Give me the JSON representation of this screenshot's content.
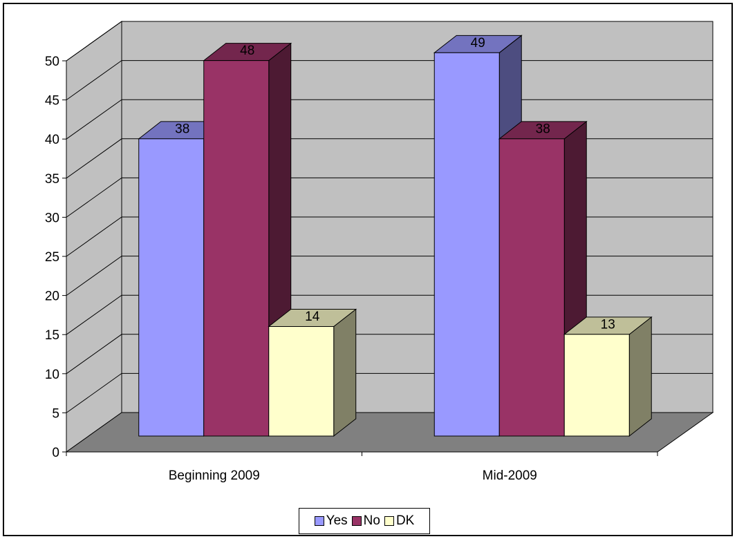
{
  "chart_data": {
    "type": "bar",
    "categories": [
      "Beginning 2009",
      "Mid-2009"
    ],
    "series": [
      {
        "name": "Yes",
        "values": [
          38,
          49
        ],
        "color": "#9999FF"
      },
      {
        "name": "No",
        "values": [
          48,
          38
        ],
        "color": "#993366"
      },
      {
        "name": "DK",
        "values": [
          14,
          13
        ],
        "color": "#FFFFCC"
      }
    ],
    "ylim": [
      0,
      50
    ],
    "yticks": [
      0,
      5,
      10,
      15,
      20,
      25,
      30,
      35,
      40,
      45,
      50
    ],
    "grid": true,
    "legend_position": "bottom",
    "style": "3d-clustered-column",
    "wall_color": "#C0C0C0",
    "floor_color": "#808080"
  }
}
